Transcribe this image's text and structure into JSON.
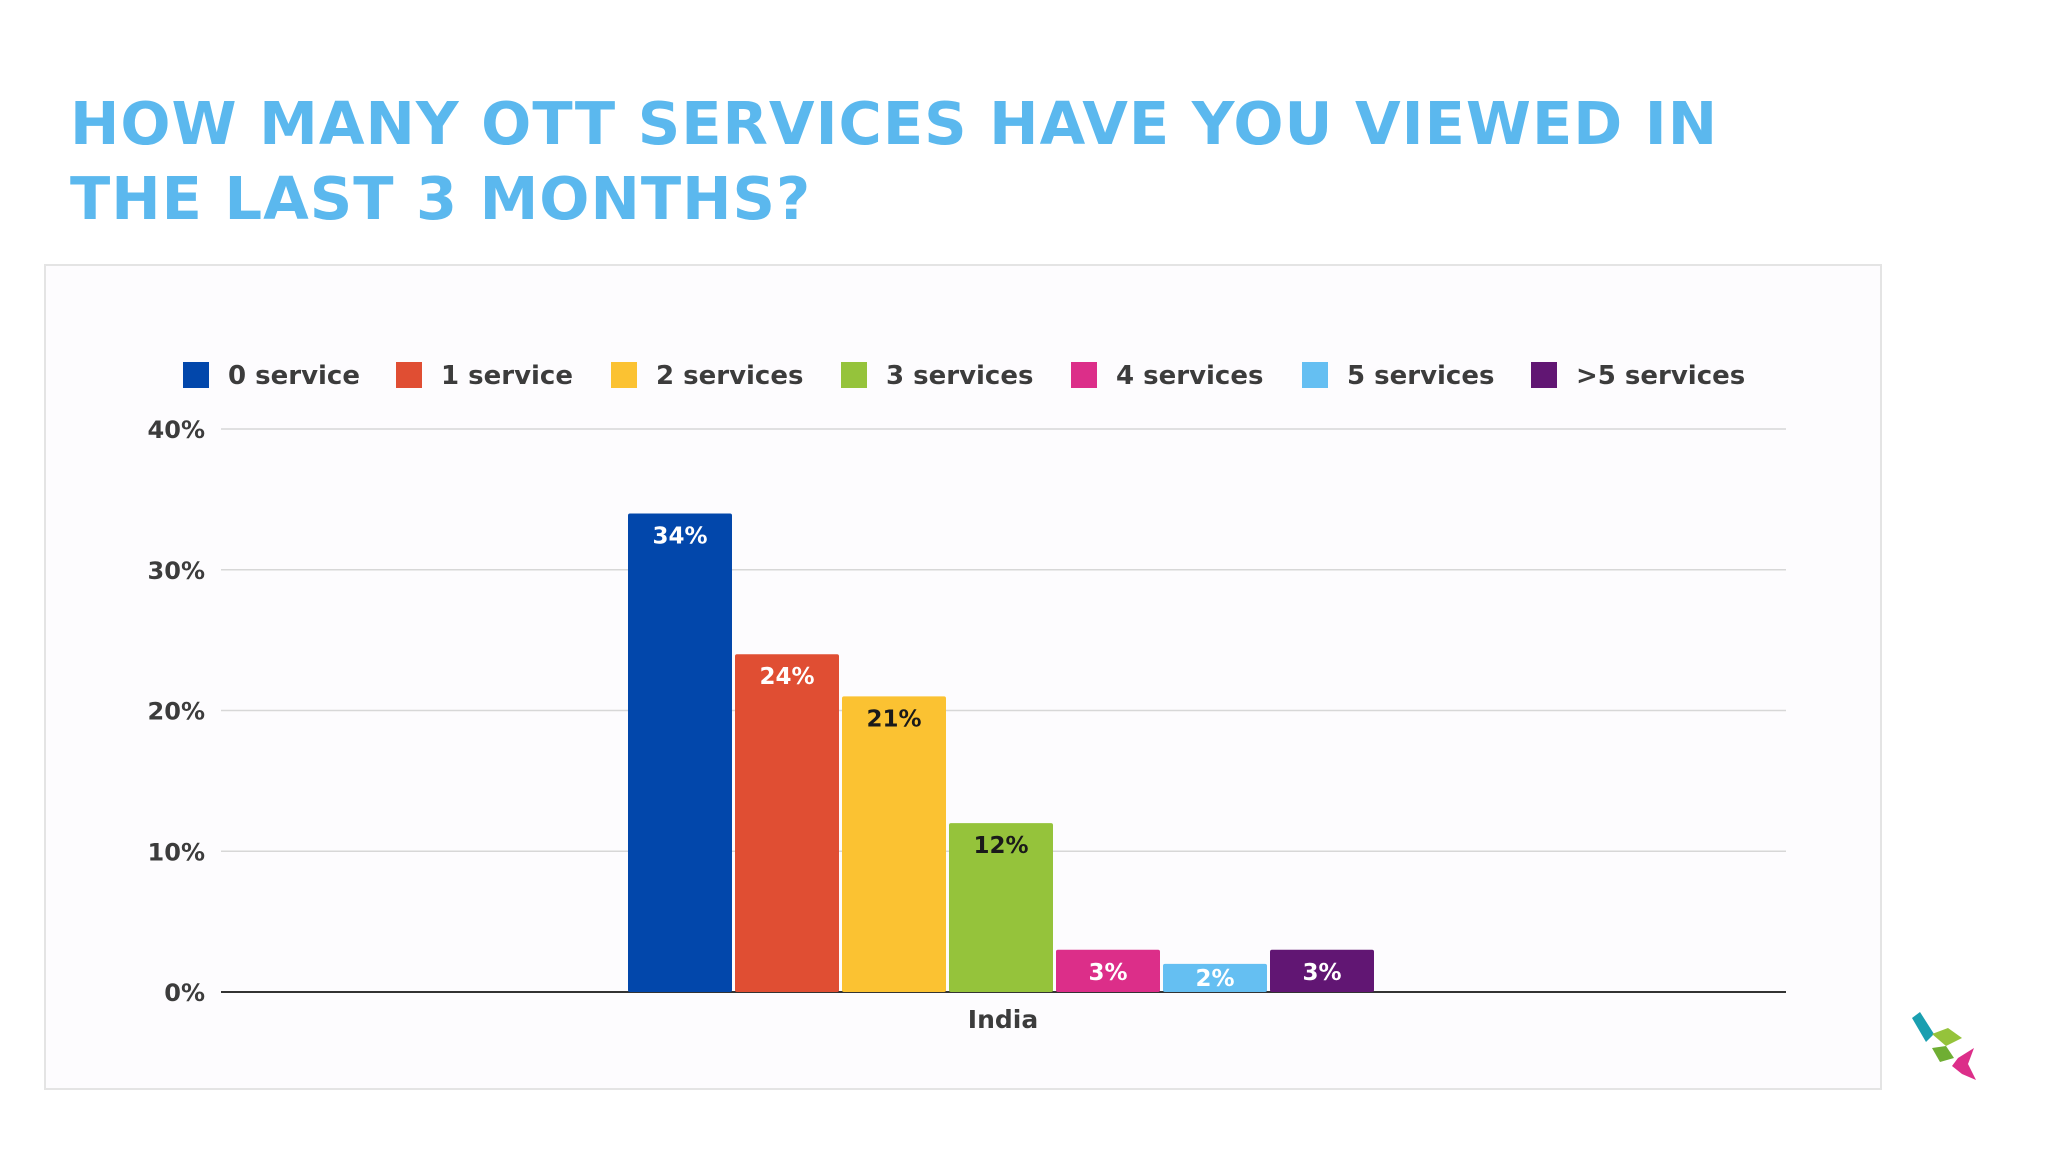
{
  "slide": {
    "title": "HOW MANY OTT SERVICES HAVE YOU VIEWED IN THE LAST 3 MONTHS?"
  },
  "chart_data": {
    "type": "bar",
    "categories": [
      "India"
    ],
    "series": [
      {
        "name": "0 service",
        "values": [
          34
        ],
        "label": "34%",
        "color": "#0247ab"
      },
      {
        "name": "1 service",
        "values": [
          24
        ],
        "label": "24%",
        "color": "#e04e33"
      },
      {
        "name": "2 services",
        "values": [
          21
        ],
        "label": "21%",
        "color": "#fbc232"
      },
      {
        "name": "3 services",
        "values": [
          12
        ],
        "label": "12%",
        "color": "#95c33b"
      },
      {
        "name": "4 services",
        "values": [
          3
        ],
        "label": "3%",
        "color": "#dc2e89"
      },
      {
        "name": "5 services",
        "values": [
          2
        ],
        "label": "2%",
        "color": "#65bff2"
      },
      {
        "name": ">5 services",
        "values": [
          3
        ],
        "label": "3%",
        "color": "#611673"
      }
    ],
    "ylim": [
      0,
      40
    ],
    "yticks": [
      0,
      10,
      20,
      30,
      40
    ],
    "ytick_labels": [
      "0%",
      "10%",
      "20%",
      "30%",
      "40%"
    ],
    "xlabel": "",
    "ylabel": "",
    "grid": true,
    "legend_position": "top"
  },
  "colors": {
    "title": "#5bb8ee",
    "axis_text": "#3c3c3c",
    "gridline": "#d7d7d7",
    "baseline": "#333333"
  },
  "logo": {
    "name": "brand-logo",
    "colors": [
      "#1a9fb0",
      "#95c33b",
      "#dc2e89"
    ]
  }
}
